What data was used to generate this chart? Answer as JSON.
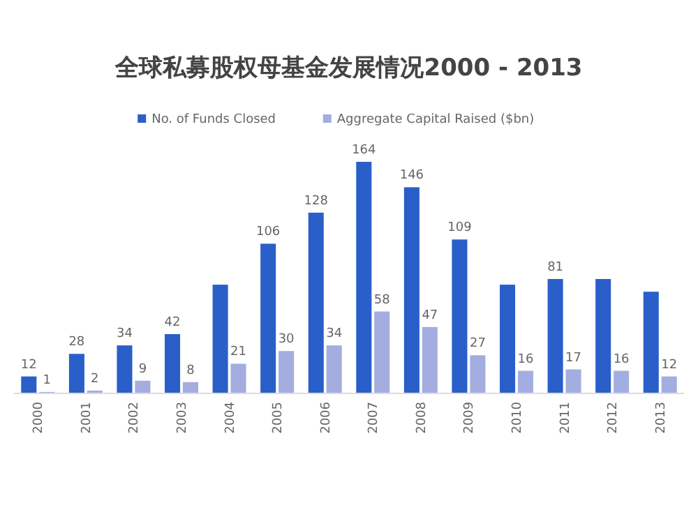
{
  "chart_data": {
    "type": "bar",
    "title": "全球私募股权母基金发展情况2000 - 2013",
    "categories": [
      "2000",
      "2001",
      "2002",
      "2003",
      "2004",
      "2005",
      "2006",
      "2007",
      "2008",
      "2009",
      "2010",
      "2011",
      "2012",
      "2013"
    ],
    "series": [
      {
        "name": "No. of Funds Closed",
        "color": "#2a5fc9",
        "values": [
          12,
          28,
          34,
          42,
          77,
          106,
          128,
          164,
          146,
          109,
          77,
          81,
          81,
          72
        ],
        "value_labels": [
          "12",
          "28",
          "34",
          "42",
          null,
          "106",
          "128",
          "164",
          "146",
          "109",
          null,
          "81",
          null,
          null
        ]
      },
      {
        "name": "Aggregate Capital Raised ($bn)",
        "color": "#a3addf",
        "values": [
          1,
          2,
          9,
          8,
          21,
          30,
          34,
          58,
          47,
          27,
          16,
          17,
          16,
          12
        ],
        "value_labels": [
          "1",
          "2",
          "9",
          "8",
          "21",
          "30",
          "34",
          "58",
          "47",
          "27",
          "16",
          "17",
          "16",
          "12"
        ]
      }
    ],
    "legend": "top"
  }
}
